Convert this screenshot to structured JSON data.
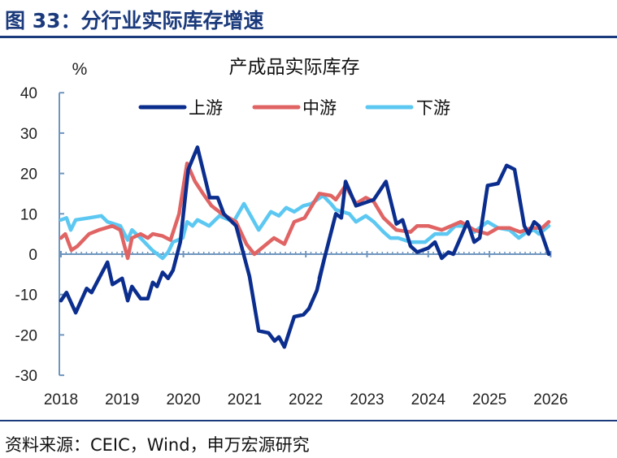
{
  "header": {
    "title": "图 33：分行业实际库存增速"
  },
  "footer": {
    "source": "资料来源：CEIC，Wind，申万宏源研究"
  },
  "chart_data": {
    "type": "line",
    "title": "产成品实际库存",
    "ylabel": "%",
    "xlabel": "",
    "ylim": [
      -30,
      40
    ],
    "yticks": [
      "40",
      "30",
      "20",
      "10",
      "0",
      "-10",
      "-20",
      "-30"
    ],
    "ytick_values": [
      40,
      30,
      20,
      10,
      0,
      -10,
      -20,
      -30
    ],
    "xlim": [
      2018,
      2026
    ],
    "xticks": [
      "2018",
      "2019",
      "2020",
      "2021",
      "2022",
      "2023",
      "2024",
      "2025",
      "2026"
    ],
    "legend_position": "top",
    "colors": {
      "upstream": "#0b2e8e",
      "midstream": "#e06464",
      "downstream": "#5cc8f2"
    },
    "series": [
      {
        "name": "上游",
        "key": "upstream",
        "points": [
          [
            2018.0,
            -11.5
          ],
          [
            2018.09,
            -9.5
          ],
          [
            2018.24,
            -14.5
          ],
          [
            2018.42,
            -8.5
          ],
          [
            2018.5,
            -9.5
          ],
          [
            2018.76,
            -2
          ],
          [
            2018.84,
            -7.5
          ],
          [
            2019.0,
            -6
          ],
          [
            2019.09,
            -11.5
          ],
          [
            2019.16,
            -8
          ],
          [
            2019.3,
            -11
          ],
          [
            2019.42,
            -11
          ],
          [
            2019.5,
            -7
          ],
          [
            2019.57,
            -8
          ],
          [
            2019.66,
            -4.5
          ],
          [
            2019.75,
            -6
          ],
          [
            2019.83,
            -4
          ],
          [
            2019.95,
            3
          ],
          [
            2020.08,
            21
          ],
          [
            2020.23,
            26.5
          ],
          [
            2020.35,
            19
          ],
          [
            2020.43,
            14
          ],
          [
            2020.56,
            14
          ],
          [
            2020.66,
            10
          ],
          [
            2020.86,
            7
          ],
          [
            2021.08,
            -5.5
          ],
          [
            2021.23,
            -19
          ],
          [
            2021.39,
            -19.5
          ],
          [
            2021.49,
            -21.5
          ],
          [
            2021.56,
            -20.5
          ],
          [
            2021.65,
            -23
          ],
          [
            2021.81,
            -15.5
          ],
          [
            2021.96,
            -15
          ],
          [
            2022.05,
            -13.5
          ],
          [
            2022.18,
            -9
          ],
          [
            2022.32,
            0
          ],
          [
            2022.22,
            -6
          ],
          [
            2022.49,
            10
          ],
          [
            2022.58,
            9
          ],
          [
            2022.65,
            18
          ],
          [
            2022.82,
            12
          ],
          [
            2023.11,
            13.5
          ],
          [
            2023.31,
            18
          ],
          [
            2023.48,
            7.5
          ],
          [
            2023.58,
            8.5
          ],
          [
            2023.71,
            2
          ],
          [
            2023.82,
            0.5
          ],
          [
            2024.0,
            1.5
          ],
          [
            2024.11,
            3
          ],
          [
            2024.22,
            -1
          ],
          [
            2024.33,
            0.5
          ],
          [
            2024.41,
            0
          ],
          [
            2024.64,
            8
          ],
          [
            2024.75,
            3
          ],
          [
            2024.84,
            4
          ],
          [
            2024.97,
            17
          ],
          [
            2025.14,
            17.5
          ],
          [
            2025.28,
            22
          ],
          [
            2025.41,
            21
          ],
          [
            2025.57,
            7
          ],
          [
            2025.64,
            5
          ],
          [
            2025.73,
            8
          ],
          [
            2025.81,
            7
          ],
          [
            2025.97,
            0
          ]
        ]
      },
      {
        "name": "中游",
        "key": "midstream",
        "points": [
          [
            2018.0,
            4
          ],
          [
            2018.07,
            5
          ],
          [
            2018.17,
            1
          ],
          [
            2018.27,
            2
          ],
          [
            2018.46,
            5
          ],
          [
            2018.62,
            6
          ],
          [
            2018.84,
            7
          ],
          [
            2018.97,
            6
          ],
          [
            2019.09,
            -1
          ],
          [
            2019.16,
            4
          ],
          [
            2019.3,
            5
          ],
          [
            2019.42,
            4
          ],
          [
            2019.5,
            5
          ],
          [
            2019.66,
            4.5
          ],
          [
            2019.79,
            3.5
          ],
          [
            2019.93,
            10
          ],
          [
            2020.06,
            22.5
          ],
          [
            2020.19,
            18
          ],
          [
            2020.32,
            15
          ],
          [
            2020.46,
            12
          ],
          [
            2020.63,
            10
          ],
          [
            2020.86,
            8
          ],
          [
            2021.03,
            2.5
          ],
          [
            2021.16,
            0
          ],
          [
            2021.48,
            4
          ],
          [
            2021.65,
            2.5
          ],
          [
            2021.81,
            8
          ],
          [
            2021.98,
            9
          ],
          [
            2022.22,
            15
          ],
          [
            2022.41,
            14.5
          ],
          [
            2022.49,
            13.5
          ],
          [
            2022.65,
            17
          ],
          [
            2022.82,
            12.5
          ],
          [
            2022.98,
            14
          ],
          [
            2023.11,
            13
          ],
          [
            2023.27,
            9
          ],
          [
            2023.48,
            6
          ],
          [
            2023.71,
            5.5
          ],
          [
            2023.82,
            7
          ],
          [
            2024.0,
            7
          ],
          [
            2024.22,
            6
          ],
          [
            2024.53,
            8
          ],
          [
            2024.75,
            6
          ],
          [
            2024.97,
            5
          ],
          [
            2025.14,
            6.5
          ],
          [
            2025.33,
            6.5
          ],
          [
            2025.5,
            5.5
          ],
          [
            2025.68,
            6.5
          ],
          [
            2025.86,
            6.5
          ],
          [
            2025.97,
            8
          ]
        ]
      },
      {
        "name": "下游",
        "key": "downstream",
        "points": [
          [
            2018.0,
            8.5
          ],
          [
            2018.09,
            9
          ],
          [
            2018.16,
            6
          ],
          [
            2018.24,
            8.5
          ],
          [
            2018.46,
            9
          ],
          [
            2018.66,
            9.5
          ],
          [
            2018.76,
            8
          ],
          [
            2018.97,
            7
          ],
          [
            2019.09,
            3.5
          ],
          [
            2019.16,
            6
          ],
          [
            2019.3,
            4
          ],
          [
            2019.49,
            1
          ],
          [
            2019.66,
            -1
          ],
          [
            2019.75,
            0.5
          ],
          [
            2019.83,
            3
          ],
          [
            2019.99,
            4
          ],
          [
            2020.06,
            8
          ],
          [
            2020.15,
            7
          ],
          [
            2020.23,
            8.5
          ],
          [
            2020.42,
            7
          ],
          [
            2020.59,
            9.5
          ],
          [
            2020.82,
            8
          ],
          [
            2020.99,
            12.5
          ],
          [
            2021.23,
            6
          ],
          [
            2021.43,
            10.5
          ],
          [
            2021.56,
            9.5
          ],
          [
            2021.68,
            11.5
          ],
          [
            2021.81,
            10.5
          ],
          [
            2021.96,
            12
          ],
          [
            2022.09,
            12.5
          ],
          [
            2022.28,
            14.5
          ],
          [
            2022.41,
            12.5
          ],
          [
            2022.49,
            11
          ],
          [
            2022.71,
            10
          ],
          [
            2022.82,
            8
          ],
          [
            2022.98,
            9.5
          ],
          [
            2023.11,
            8
          ],
          [
            2023.27,
            5.5
          ],
          [
            2023.38,
            4
          ],
          [
            2023.51,
            4
          ],
          [
            2023.71,
            3
          ],
          [
            2023.95,
            3
          ],
          [
            2024.11,
            5
          ],
          [
            2024.31,
            5
          ],
          [
            2024.44,
            7
          ],
          [
            2024.64,
            7
          ],
          [
            2024.75,
            5.5
          ],
          [
            2024.97,
            8
          ],
          [
            2025.14,
            6.5
          ],
          [
            2025.33,
            6
          ],
          [
            2025.48,
            4
          ],
          [
            2025.61,
            5.5
          ],
          [
            2025.73,
            6
          ],
          [
            2025.81,
            5
          ],
          [
            2025.97,
            7
          ]
        ]
      }
    ]
  }
}
